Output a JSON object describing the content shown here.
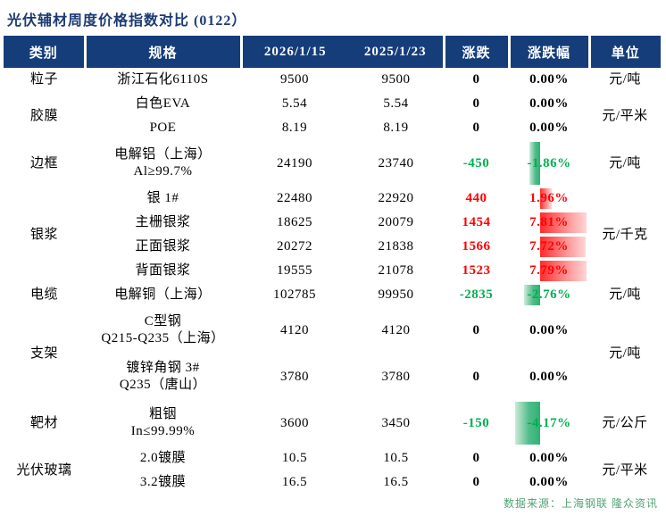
{
  "title": "光伏辅材周度价格指数对比 (0122）",
  "columns": [
    "类别",
    "规格",
    "2026/1/15",
    "2025/1/23",
    "涨跌",
    "涨跌幅",
    "单位"
  ],
  "rows": [
    {
      "category": "粒子",
      "cat_span": 1,
      "spec": "浙江石化6110S",
      "v1": "9500",
      "v2": "9500",
      "chg": "0",
      "pct": "0.00%",
      "pct_val": 0,
      "unit": "元/吨",
      "unit_span": 1
    },
    {
      "category": "胶膜",
      "cat_span": 2,
      "spec": "白色EVA",
      "v1": "5.54",
      "v2": "5.54",
      "chg": "0",
      "pct": "0.00%",
      "pct_val": 0,
      "unit": "元/平米",
      "unit_span": 2
    },
    {
      "spec": "POE",
      "v1": "8.19",
      "v2": "8.19",
      "chg": "0",
      "pct": "0.00%",
      "pct_val": 0
    },
    {
      "category": "边框",
      "cat_span": 1,
      "spec": "电解铝（上海）",
      "spec2": "Al≥99.7%",
      "v1": "24190",
      "v2": "23740",
      "chg": "-450",
      "pct": "-1.86%",
      "pct_val": -1.86,
      "unit": "元/吨",
      "unit_span": 1
    },
    {
      "category": "银浆",
      "cat_span": 4,
      "spec": "银 1#",
      "v1": "22480",
      "v2": "22920",
      "chg": "440",
      "pct": "1.96%",
      "pct_val": 1.96,
      "unit": "元/千克",
      "unit_span": 4
    },
    {
      "spec": "主栅银浆",
      "v1": "18625",
      "v2": "20079",
      "chg": "1454",
      "pct": "7.81%",
      "pct_val": 7.81
    },
    {
      "spec": "正面银浆",
      "v1": "20272",
      "v2": "21838",
      "chg": "1566",
      "pct": "7.72%",
      "pct_val": 7.72
    },
    {
      "spec": "背面银浆",
      "v1": "19555",
      "v2": "21078",
      "chg": "1523",
      "pct": "7.79%",
      "pct_val": 7.79
    },
    {
      "category": "电缆",
      "cat_span": 1,
      "spec": "电解铜（上海）",
      "v1": "102785",
      "v2": "99950",
      "chg": "-2835",
      "pct": "-2.76%",
      "pct_val": -2.76,
      "unit": "元/吨",
      "unit_span": 1
    },
    {
      "category": "支架",
      "cat_span": 2,
      "spec": "C型钢",
      "spec2": "Q215-Q235（上海）",
      "v1": "4120",
      "v2": "4120",
      "chg": "0",
      "pct": "0.00%",
      "pct_val": 0,
      "unit": "元/吨",
      "unit_span": 2
    },
    {
      "spec": "镀锌角钢 3#",
      "spec2": "Q235（唐山）",
      "v1": "3780",
      "v2": "3780",
      "chg": "0",
      "pct": "0.00%",
      "pct_val": 0
    },
    {
      "category": "靶材",
      "cat_span": 1,
      "spec": "粗铟",
      "spec2": "In≤99.99%",
      "v1": "3600",
      "v2": "3450",
      "chg": "-150",
      "pct": "-4.17%",
      "pct_val": -4.17,
      "unit": "元/公斤",
      "unit_span": 1
    },
    {
      "category": "光伏玻璃",
      "cat_span": 2,
      "spec": "2.0镀膜",
      "v1": "10.5",
      "v2": "10.5",
      "chg": "0",
      "pct": "0.00%",
      "pct_val": 0,
      "unit": "元/平米",
      "unit_span": 2
    },
    {
      "spec": "3.2镀膜",
      "v1": "16.5",
      "v2": "16.5",
      "chg": "0",
      "pct": "0.00%",
      "pct_val": 0
    }
  ],
  "footer": {
    "source": "数据来源：上海钢联 隆众资讯"
  },
  "colors": {
    "header_bg": "#153d7a",
    "title": "#1b3a73",
    "up_text": "#ff0000",
    "down_text": "#00b050",
    "bar_up": "#ff2b2b",
    "bar_down": "#2db273",
    "source_text": "#52a373"
  }
}
